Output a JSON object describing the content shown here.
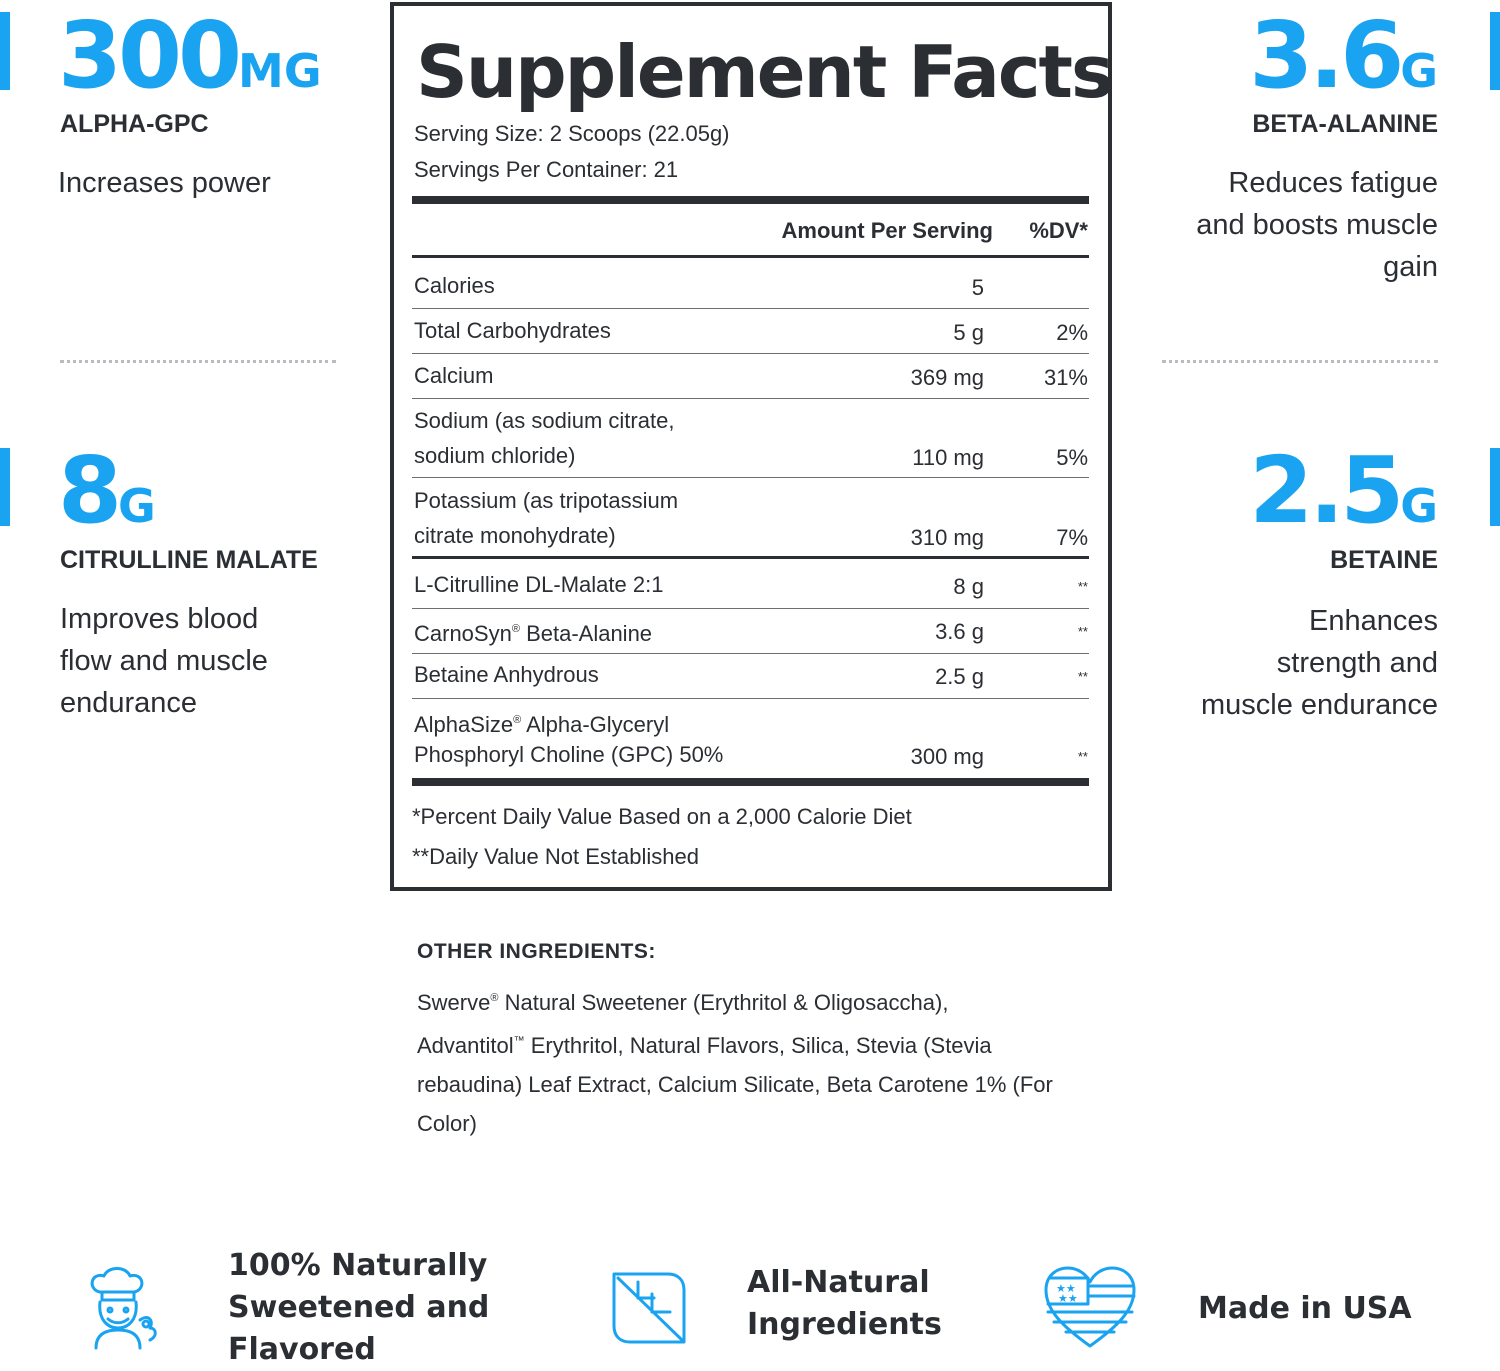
{
  "accent_color": "#1aa3f0",
  "stats": {
    "alpha": {
      "value": "300",
      "unit": "MG",
      "name": "ALPHA-GPC",
      "desc": "Increases power"
    },
    "beta": {
      "value": "3.6",
      "unit": "G",
      "name": "BETA-ALANINE",
      "desc1": "Reduces fatigue",
      "desc2": "and boosts muscle",
      "desc3": "gain"
    },
    "citrulline": {
      "value": "8",
      "unit": "G",
      "name": "CITRULLINE MALATE",
      "desc1": "Improves blood",
      "desc2": "flow and muscle",
      "desc3": "endurance"
    },
    "betaine": {
      "value": "2.5",
      "unit": "G",
      "name": "BETAINE",
      "desc1": "Enhances",
      "desc2": "strength and",
      "desc3": "muscle endurance"
    }
  },
  "facts": {
    "title": "Supplement Facts",
    "serving_size": "Serving Size: 2 Scoops (22.05g)",
    "servings_per_container": "Servings Per Container: 21",
    "col_amount": "Amount Per Serving",
    "col_dv": "%DV*",
    "rows": [
      {
        "name": "Calories",
        "amount": "5",
        "dv": ""
      },
      {
        "name": "Total Carbohydrates",
        "amount": "5 g",
        "dv": "2%"
      },
      {
        "name": "Calcium",
        "amount": "369 mg",
        "dv": "31%"
      },
      {
        "name": "Sodium (as sodium citrate,",
        "name2": "sodium chloride)",
        "amount": "110 mg",
        "dv": "5%"
      },
      {
        "name": "Potassium (as tripotassium",
        "name2": "citrate monohydrate)",
        "amount": "310 mg",
        "dv": "7%"
      },
      {
        "name": "L-Citrulline DL-Malate 2:1",
        "amount": "8 g",
        "dv": "**"
      },
      {
        "name": "CarnoSyn",
        "reg": "®",
        "name_rest": " Beta-Alanine",
        "amount": "3.6 g",
        "dv": "**"
      },
      {
        "name": "Betaine Anhydrous",
        "amount": "2.5 g",
        "dv": "**"
      },
      {
        "name": "AlphaSize",
        "reg": "®",
        "name_rest": " Alpha-Glyceryl",
        "name2": "Phosphoryl Choline (GPC) 50%",
        "amount": "300 mg",
        "dv": "**"
      }
    ],
    "footnote1": "*Percent Daily Value Based on a 2,000 Calorie Diet",
    "footnote2": "**Daily Value Not Established"
  },
  "other": {
    "heading": "OTHER INGREDIENTS:",
    "part1": "Swerve",
    "reg": "®",
    "part2": " Natural Sweetener (Erythritol & Oligosaccha),",
    "part3": "Advantitol",
    "tm": "™",
    "part4": " Erythritol, Natural Flavors, Silica, Stevia (Stevia rebaudina) Leaf Extract, Calcium Silicate, Beta Carotene 1% (For Color)"
  },
  "features": {
    "sweetened": {
      "line1": "100% Naturally",
      "line2": "Sweetened and",
      "line3": "Flavored",
      "icon": "chef-icon"
    },
    "natural": {
      "line1": "All-Natural",
      "line2": "Ingredients",
      "icon": "leaf-icon"
    },
    "usa": {
      "line1": "Made in USA",
      "icon": "usa-heart-icon"
    }
  }
}
